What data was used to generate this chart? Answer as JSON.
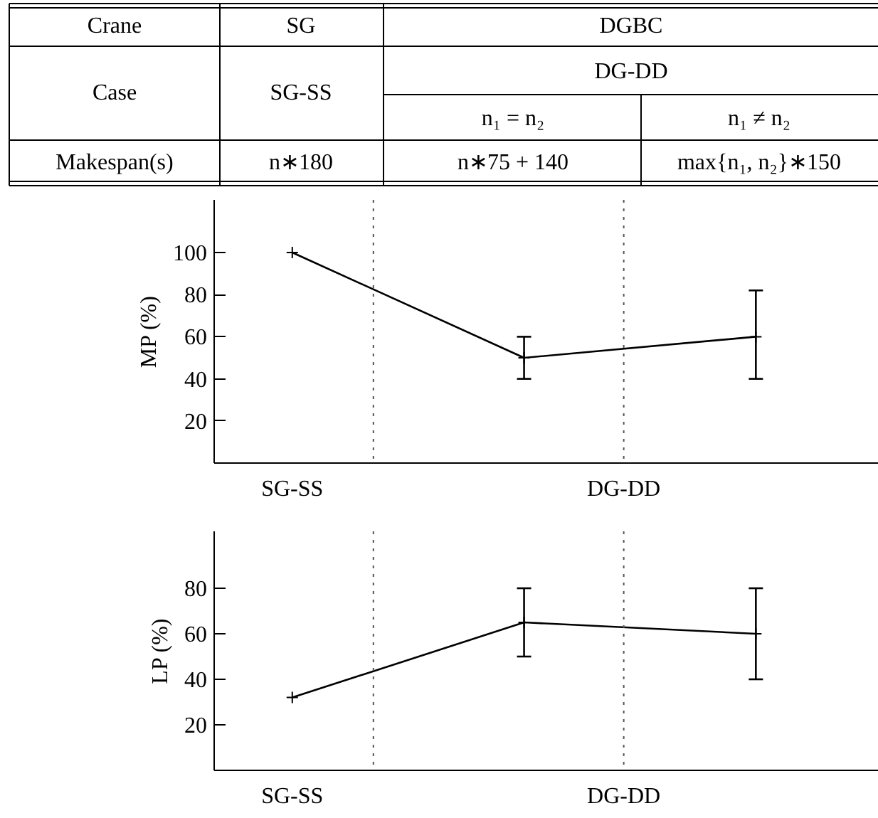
{
  "chart_data": [
    {
      "type": "other",
      "annotations": [
        "Crane",
        "SG",
        "DGBC",
        "Case",
        "SG-SS",
        "DG-DD",
        "n₁ = n₂",
        "n₁ ≠ n₂",
        "Makespan(s)",
        "n∗180",
        "n∗75 + 140",
        "max{n₁, n₂}∗150"
      ]
    },
    {
      "type": "line",
      "ylabel": "MP (%)",
      "categories": [
        "SG-SS",
        null,
        null
      ],
      "annotations": [
        "DG-DD"
      ],
      "series": [
        {
          "color": "#000000",
          "values": [
            100,
            50,
            60
          ],
          "errors": [
            null,
            [
              40,
              60
            ],
            [
              40,
              82
            ]
          ]
        }
      ],
      "ylim": [
        0,
        125
      ],
      "yticks": [
        20,
        40,
        60,
        80,
        100
      ],
      "marker": "cross",
      "line_style": "solid"
    },
    {
      "type": "line",
      "ylabel": "LP (%)",
      "categories": [
        "SG-SS",
        null,
        null
      ],
      "annotations": [
        "DG-DD"
      ],
      "series": [
        {
          "color": "#000000",
          "values": [
            32,
            65,
            60
          ],
          "errors": [
            null,
            [
              50,
              80
            ],
            [
              40,
              80
            ]
          ]
        }
      ],
      "ylim": [
        0,
        105
      ],
      "yticks": [
        20,
        40,
        60,
        80
      ],
      "marker": "cross",
      "line_style": "solid"
    }
  ]
}
